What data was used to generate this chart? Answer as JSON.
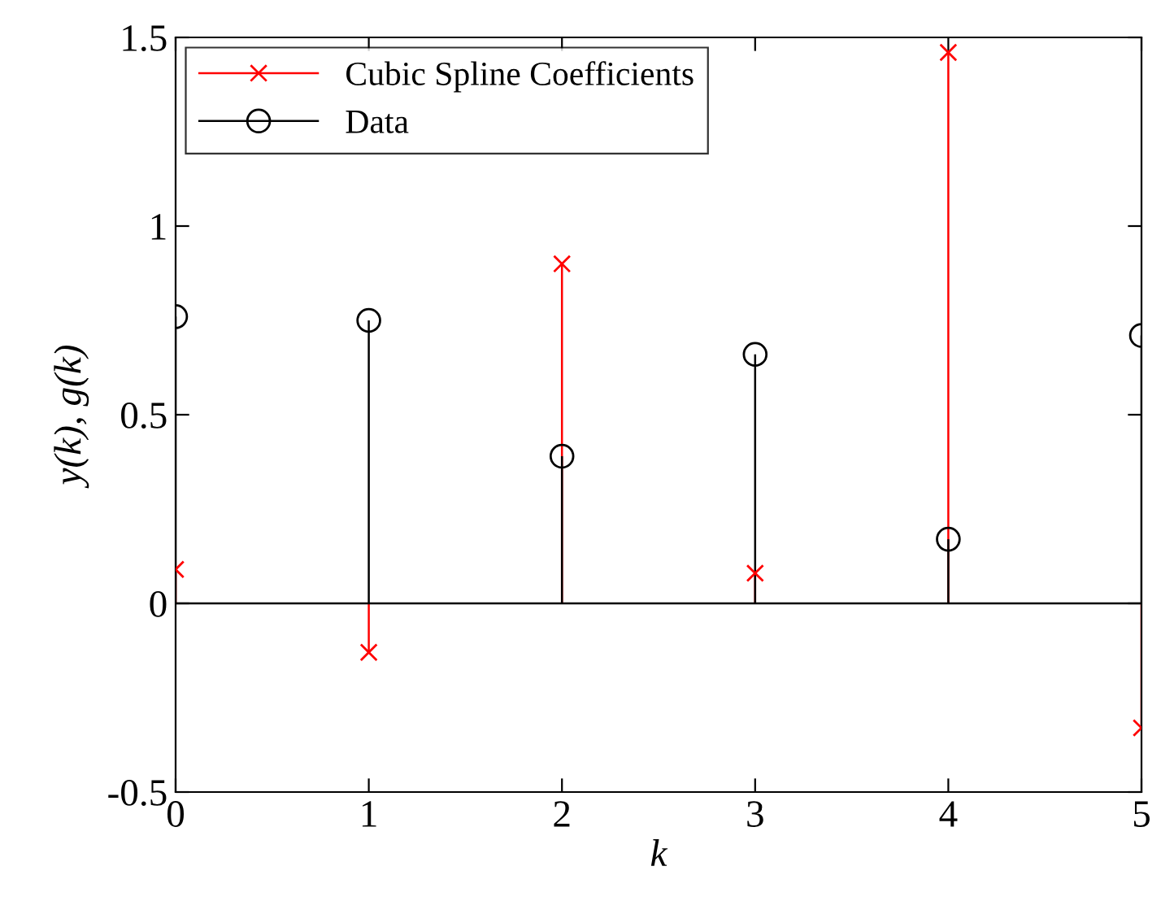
{
  "chart_data": {
    "type": "lollipop",
    "xlabel": "k",
    "ylabel": "y(k), g(k)",
    "legend": "top left",
    "grid": false,
    "x": [
      0,
      1,
      2,
      3,
      4,
      5
    ],
    "xlim": [
      0,
      5
    ],
    "xticks": [
      0,
      1,
      2,
      3,
      4,
      5
    ],
    "ylim": [
      -0.5,
      1.5
    ],
    "yticks": [
      -0.5,
      0,
      0.5,
      1,
      1.5
    ],
    "series": [
      {
        "name": "Cubic Spline Coefficients",
        "color": "#ff0000",
        "marker": "cross",
        "values": [
          0.09,
          -0.13,
          0.9,
          0.08,
          1.46,
          -0.33
        ]
      },
      {
        "name": "Data",
        "color": "#000000",
        "marker": "circle",
        "values": [
          0.76,
          0.75,
          0.39,
          0.66,
          0.17,
          0.71
        ]
      }
    ]
  }
}
